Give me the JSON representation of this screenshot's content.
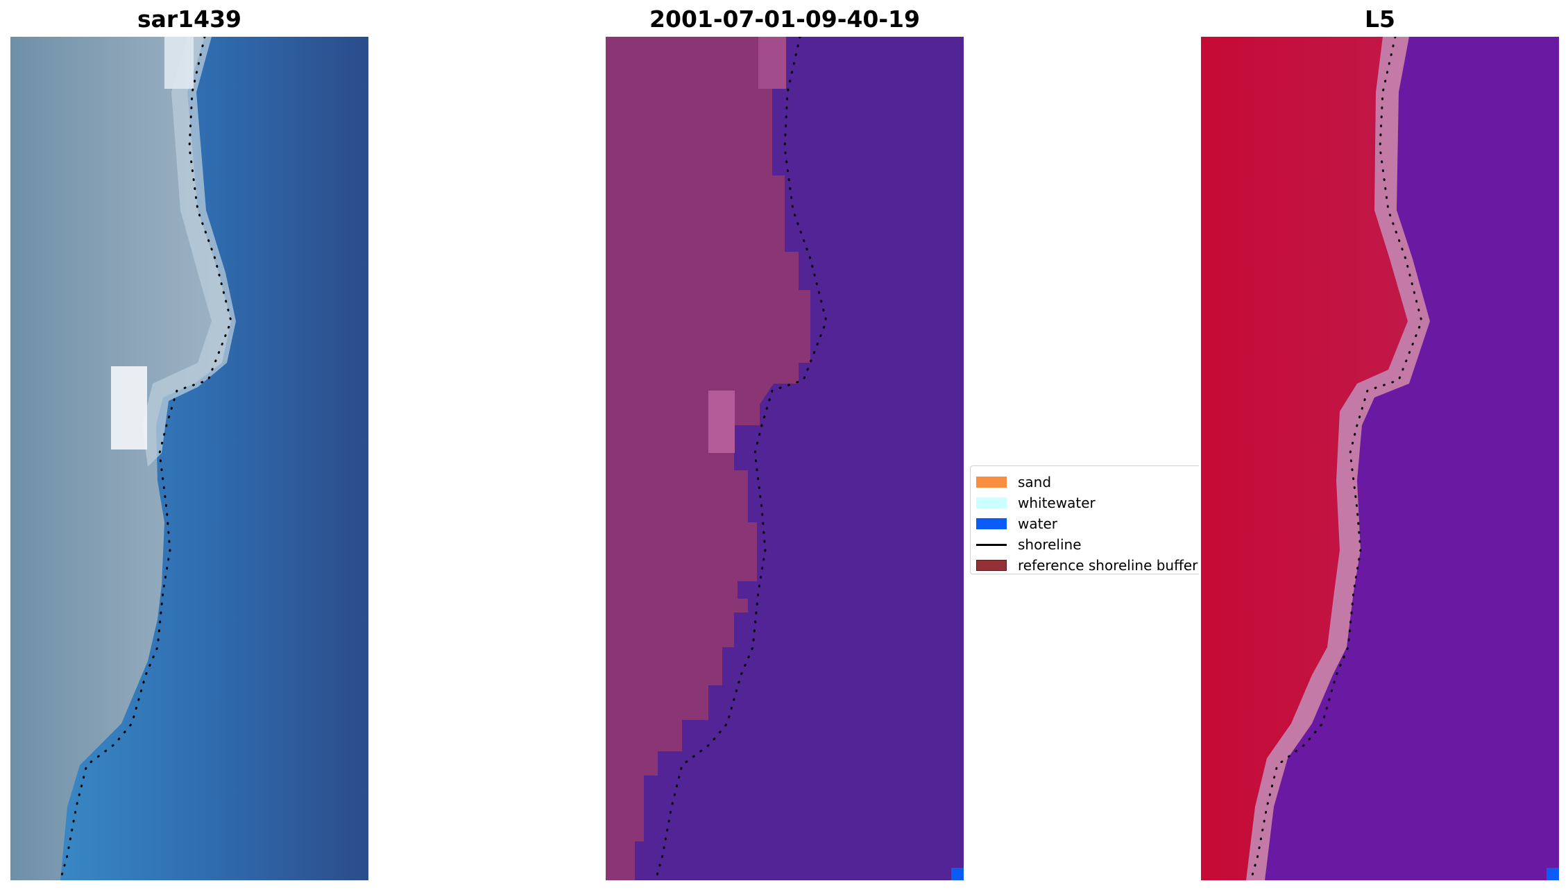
{
  "panels": [
    {
      "title": "sar1439"
    },
    {
      "title": "2001-07-01-09-40-19"
    },
    {
      "title": "L5"
    }
  ],
  "legend": {
    "items": [
      {
        "label": "sand",
        "color": "#f98d40",
        "kind": "patch"
      },
      {
        "label": "whitewater",
        "color": "#ccffff",
        "kind": "patch"
      },
      {
        "label": "water",
        "color": "#0a5cf5",
        "kind": "patch"
      },
      {
        "label": "shoreline",
        "color": "#000000",
        "kind": "line"
      },
      {
        "label": "reference shoreline buffer",
        "color": "#943038",
        "kind": "patch"
      }
    ]
  }
}
